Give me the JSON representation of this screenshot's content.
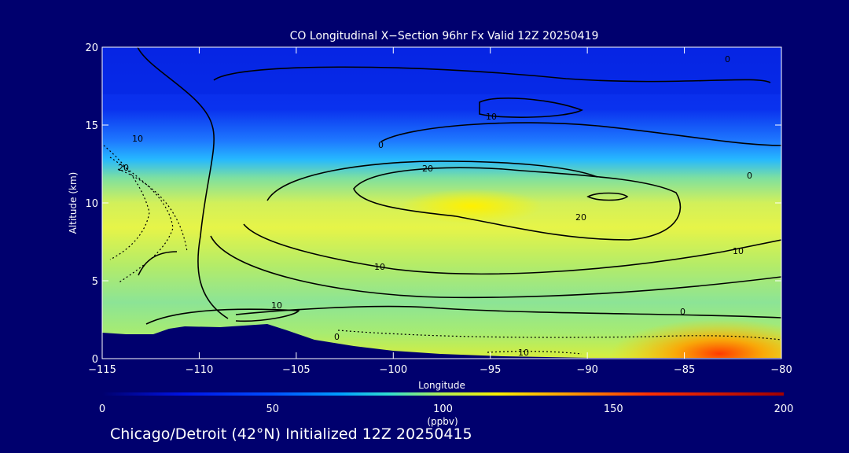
{
  "chart_data": {
    "type": "heatmap",
    "title": "CO Longitudinal X−Section 96hr  Fx Valid 12Z 20250419",
    "xlabel": "Longitude",
    "ylabel": "Altitude (km)",
    "xlim": [
      -115,
      -80
    ],
    "ylim": [
      0,
      20
    ],
    "x_ticks": [
      -115,
      -110,
      -105,
      -100,
      -95,
      -90,
      -85,
      -80
    ],
    "x_tick_labels": [
      "−115",
      "−110",
      "−105",
      "−100",
      "−95",
      "−90",
      "−85",
      "−80"
    ],
    "y_ticks": [
      0,
      5,
      10,
      15,
      20
    ],
    "y_tick_labels": [
      "0",
      "5",
      "10",
      "15",
      "20"
    ],
    "colorbar": {
      "min": 0,
      "max": 200,
      "ticks": [
        0,
        50,
        100,
        150,
        200
      ],
      "tick_labels": [
        "0",
        "50",
        "100",
        "150",
        "200"
      ],
      "unit": "(ppbv)"
    },
    "field_description_bands": [
      {
        "alt_range": [
          15,
          20
        ],
        "co_ppbv": 35
      },
      {
        "alt_range": [
          13,
          15
        ],
        "co_ppbv": 60
      },
      {
        "alt_range": [
          11,
          13
        ],
        "co_ppbv": 80
      },
      {
        "alt_range": [
          8,
          11
        ],
        "co_ppbv": 100
      },
      {
        "alt_range": [
          3,
          8
        ],
        "co_ppbv": 90
      },
      {
        "alt_range": [
          0,
          3
        ],
        "co_ppbv": 105
      }
    ],
    "field_hotspot": {
      "lon_range": [
        -87,
        -80
      ],
      "alt_range": [
        0,
        2
      ],
      "co_ppbv": 150
    },
    "contour_labels": [
      "0",
      "10",
      "20",
      "20",
      "10",
      "0",
      "10",
      "0",
      "10",
      "0",
      "10",
      "10",
      "20",
      "0"
    ]
  },
  "footer_text": "Chicago/Detroit (42°N) Initialized 12Z 20250415"
}
